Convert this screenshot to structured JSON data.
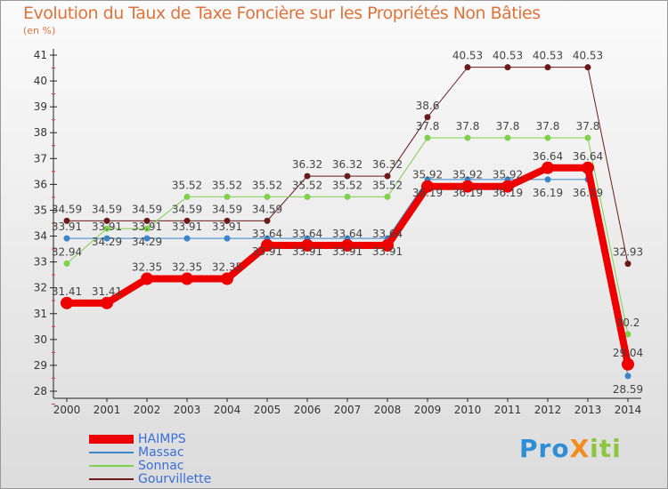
{
  "title": "Evolution du Taux de Taxe Foncière sur les Propriétés Non Bâties",
  "unit": "(en %)",
  "logo": {
    "text": "ProXiti",
    "parts": [
      "Pro",
      "X",
      "iti"
    ],
    "colors": [
      "#2e8fd6",
      "#f28c1e",
      "#8cc63f"
    ]
  },
  "chart_data": {
    "type": "line",
    "title": "Evolution du Taux de Taxe Foncière sur les Propriétés Non Bâties",
    "ylabel": "(en %)",
    "ylim": [
      28,
      41
    ],
    "yticks": [
      "28",
      "29",
      "30",
      "31",
      "32",
      "33",
      "34",
      "35",
      "36",
      "37",
      "38",
      "39",
      "40",
      "41"
    ],
    "x": [
      "2000",
      "2001",
      "2002",
      "2003",
      "2004",
      "2005",
      "2006",
      "2007",
      "2008",
      "2009",
      "2010",
      "2011",
      "2012",
      "2013",
      "2014"
    ],
    "legend_position": "bottom-left",
    "series": [
      {
        "name": "Gourvillette",
        "color": "#6b1a1a",
        "width": 1,
        "values": [
          34.59,
          34.59,
          34.59,
          34.59,
          34.59,
          34.59,
          36.32,
          36.32,
          36.32,
          38.6,
          40.53,
          40.53,
          40.53,
          40.53,
          32.93
        ]
      },
      {
        "name": "Sonnac",
        "color": "#7fd04b",
        "width": 1,
        "values": [
          32.94,
          34.29,
          34.29,
          35.52,
          35.52,
          35.52,
          35.52,
          35.52,
          35.52,
          37.8,
          37.8,
          37.8,
          37.8,
          37.8,
          30.2
        ]
      },
      {
        "name": "Massac",
        "color": "#3a86c8",
        "width": 1,
        "values": [
          33.91,
          33.91,
          33.91,
          33.91,
          33.91,
          33.91,
          33.91,
          33.91,
          33.91,
          36.19,
          36.19,
          36.19,
          36.19,
          36.19,
          28.59
        ]
      },
      {
        "name": "HAIMPS",
        "color": "#ee0000",
        "width": 8,
        "values": [
          31.41,
          31.41,
          32.35,
          32.35,
          32.35,
          33.64,
          33.64,
          33.64,
          33.64,
          35.92,
          35.92,
          35.92,
          36.64,
          36.64,
          29.04
        ]
      }
    ],
    "legend_order": [
      "HAIMPS",
      "Massac",
      "Sonnac",
      "Gourvillette"
    ]
  }
}
